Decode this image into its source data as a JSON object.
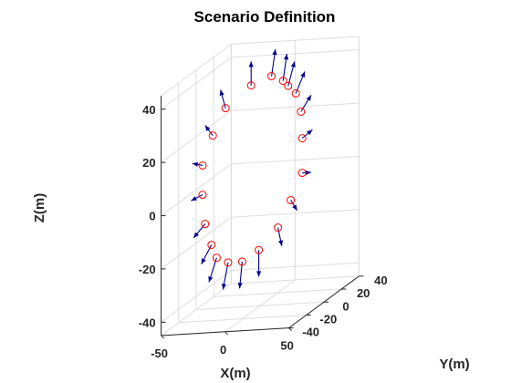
{
  "chart_data": {
    "type": "scatter",
    "title": "Scenario Definition",
    "xlabel": "X(m)",
    "ylabel": "Y(m)",
    "zlabel": "Z(m)",
    "xlim": [
      -50,
      50
    ],
    "ylim": [
      -40,
      40
    ],
    "zlim": [
      -45,
      45
    ],
    "xticks": [
      "-50",
      "0",
      "50"
    ],
    "yticks": [
      "-40",
      "-20",
      "0",
      "20",
      "40"
    ],
    "zticks": [
      "-40",
      "-20",
      "0",
      "20",
      "40"
    ],
    "grid": true,
    "marker_color": "#ff0000",
    "arrow_color": "#00008b",
    "points": [
      {
        "x": 9,
        "z": 41,
        "dz": 10,
        "dx": 3
      },
      {
        "x": 18,
        "z": 39,
        "dz": 10,
        "dx": 3
      },
      {
        "x": 22,
        "z": 37,
        "dz": 9,
        "dx": 5
      },
      {
        "x": 28,
        "z": 34,
        "dz": 8,
        "dx": 7
      },
      {
        "x": 32,
        "z": 27,
        "dz": 6,
        "dx": 8
      },
      {
        "x": 33,
        "z": 17,
        "dz": 3,
        "dx": 8
      },
      {
        "x": 33,
        "z": 4,
        "dz": 0,
        "dx": 7
      },
      {
        "x": 24,
        "z": -6,
        "dz": -4,
        "dx": 5
      },
      {
        "x": 14,
        "z": -16,
        "dz": -7,
        "dx": 3
      },
      {
        "x": -1,
        "z": -24,
        "dz": -10,
        "dx": 0
      },
      {
        "x": -14,
        "z": -28,
        "dz": -10,
        "dx": -2
      },
      {
        "x": -25,
        "z": -28,
        "dz": -10,
        "dx": -4
      },
      {
        "x": -34,
        "z": -26,
        "dz": -9,
        "dx": -6
      },
      {
        "x": -38,
        "z": -21,
        "dz": -7,
        "dx": -8
      },
      {
        "x": -43,
        "z": -13,
        "dz": -5,
        "dx": -9
      },
      {
        "x": -45,
        "z": -2,
        "dz": -2,
        "dx": -9
      },
      {
        "x": -45,
        "z": 9,
        "dz": 1,
        "dx": -8
      },
      {
        "x": -37,
        "z": 20,
        "dz": 4,
        "dx": -6
      },
      {
        "x": -27,
        "z": 30,
        "dz": 7,
        "dx": -4
      },
      {
        "x": -7,
        "z": 38,
        "dz": 9,
        "dx": 0
      }
    ]
  }
}
